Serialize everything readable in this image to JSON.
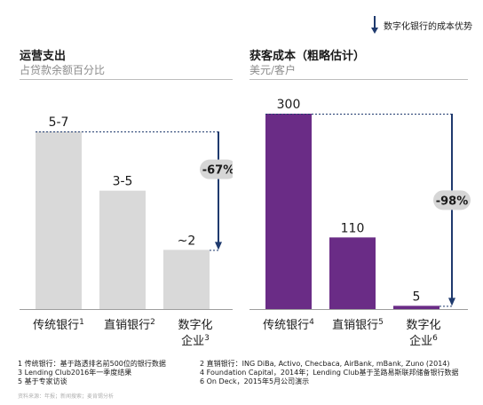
{
  "legend": {
    "label": "数字化银行的成本优势"
  },
  "chart_data": [
    {
      "type": "bar",
      "title": "运营支出",
      "subtitle": "占贷款余额百分比",
      "categories": [
        {
          "name": "传统银行",
          "note": "1"
        },
        {
          "name": "直销银行",
          "note": "2"
        },
        {
          "name": "数字化",
          "name2": "企业",
          "note": "3"
        }
      ],
      "values": [
        6,
        4,
        2
      ],
      "value_labels": [
        "5-7",
        "3-5",
        "~2"
      ],
      "ylim": [
        0,
        6.6
      ],
      "bar_color": "#d9d9d9",
      "change_label": "-67%",
      "grid": false
    },
    {
      "type": "bar",
      "title": "获客成本（粗略估计）",
      "subtitle": "美元/客户",
      "categories": [
        {
          "name": "传统银行",
          "note": "4"
        },
        {
          "name": "直销银行",
          "note": "5"
        },
        {
          "name": "数字化",
          "name2": "企业",
          "note": "6"
        }
      ],
      "values": [
        300,
        110,
        5
      ],
      "value_labels": [
        "300",
        "110",
        "5"
      ],
      "ylim": [
        0,
        300
      ],
      "bar_color": "#6a2c86",
      "change_label": "-98%",
      "grid": false
    }
  ],
  "arrow_color": "#1f3a6e",
  "footnotes": [
    [
      "1 传统银行：基于路透排名前500位的银行数据",
      "2 直销银行：ING DiBa, Activo, Checbaca, AirBank, mBank, Zuno (2014)"
    ],
    [
      "3 Lending Club2016年一季度结果",
      "4 Foundation Capital，2014年；Lending Club基于圣路易斯联邦储备银行数据"
    ],
    [
      "5 基于专家访谈",
      "6 On Deck，2015年5月公司演示"
    ]
  ],
  "source": "资料来源：年报；新闻搜索；麦肯锡分析"
}
